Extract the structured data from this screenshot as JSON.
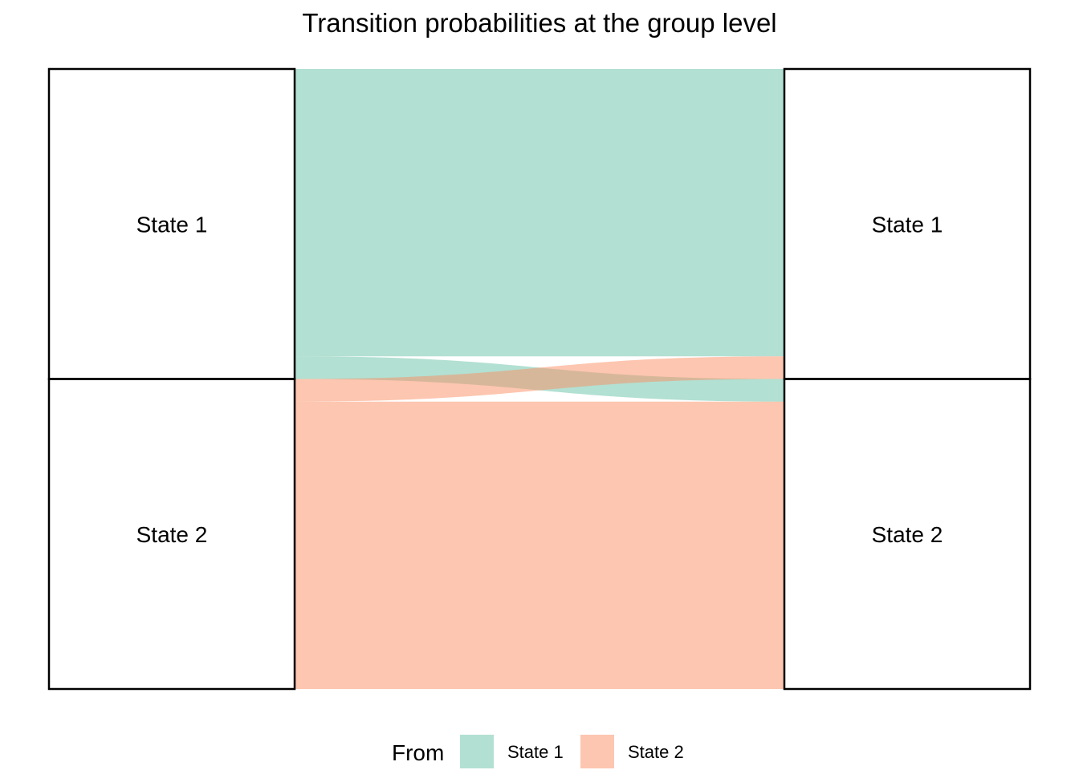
{
  "chart_data": {
    "type": "alluvial",
    "title": "Transition probabilities at the group level",
    "nodes_left": [
      "State 1",
      "State 2"
    ],
    "nodes_right": [
      "State 1",
      "State 2"
    ],
    "flows": [
      {
        "from": "State 1",
        "to": "State 1",
        "value": 0.927
      },
      {
        "from": "State 1",
        "to": "State 2",
        "value": 0.073
      },
      {
        "from": "State 2",
        "to": "State 1",
        "value": 0.073
      },
      {
        "from": "State 2",
        "to": "State 2",
        "value": 0.927
      }
    ],
    "legend": {
      "title": "From",
      "position": "bottom",
      "entries": [
        {
          "label": "State 1",
          "color": "#66C2A5"
        },
        {
          "label": "State 2",
          "color": "#FC8D62"
        }
      ]
    },
    "colors": {
      "State 1": "#66C2A5",
      "State 2": "#FC8D62"
    },
    "flow_opacity": 0.5,
    "grid": false
  }
}
